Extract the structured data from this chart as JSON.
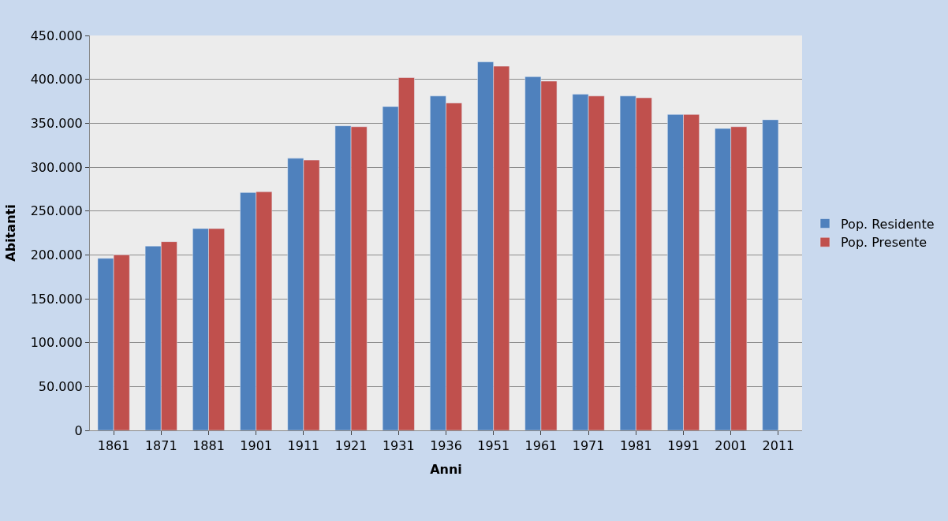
{
  "chart_data": {
    "type": "bar",
    "xlabel": "Anni",
    "ylabel": "Abitanti",
    "categories": [
      "1861",
      "1871",
      "1881",
      "1901",
      "1911",
      "1921",
      "1931",
      "1936",
      "1951",
      "1961",
      "1971",
      "1981",
      "1991",
      "2001",
      "2011"
    ],
    "series": [
      {
        "name": "Pop. Residente",
        "color": "#4f81bd",
        "values": [
          196000,
          210000,
          230000,
          271000,
          310000,
          347000,
          369000,
          381000,
          420000,
          403000,
          383000,
          381000,
          360000,
          344000,
          354000
        ]
      },
      {
        "name": "Pop. Presente",
        "color": "#c0504d",
        "values": [
          200000,
          215000,
          230000,
          272000,
          308000,
          346000,
          402000,
          373000,
          415000,
          398000,
          381000,
          379000,
          360000,
          346000,
          null
        ]
      }
    ],
    "ylim": [
      0,
      450000
    ],
    "yticks": [
      0,
      {
        "value": 50000,
        "label": "50.000"
      },
      {
        "value": 100000,
        "label": "100.000"
      },
      {
        "value": 150000,
        "label": "150.000"
      },
      {
        "value": 200000,
        "label": "200.000"
      },
      {
        "value": 250000,
        "label": "250.000"
      },
      {
        "value": 300000,
        "label": "300.000"
      },
      {
        "value": 350000,
        "label": "350.000"
      },
      {
        "value": 400000,
        "label": "400.000"
      },
      {
        "value": 450000,
        "label": "450.000"
      }
    ],
    "grid": "y",
    "legend": "right"
  }
}
